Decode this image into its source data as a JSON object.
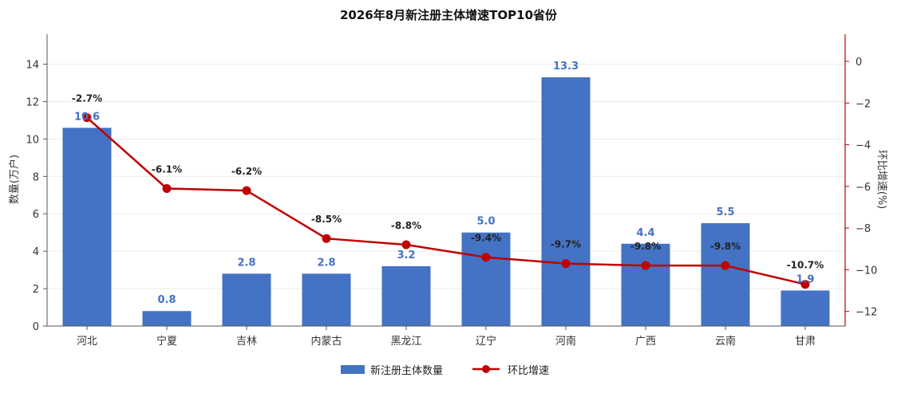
{
  "chart_data": {
    "type": "bar",
    "title": "2026年8月新注册主体增速TOP10省份",
    "categories": [
      "河北",
      "宁夏",
      "吉林",
      "内蒙古",
      "黑龙江",
      "辽宁",
      "河南",
      "广西",
      "云南",
      "甘肃"
    ],
    "series": [
      {
        "name": "新注册主体数量",
        "type": "bar",
        "axis": "left",
        "values": [
          10.6,
          0.8,
          2.8,
          2.8,
          3.2,
          5.0,
          13.3,
          4.4,
          5.5,
          1.9
        ],
        "labels": [
          "10.6",
          "0.8",
          "2.8",
          "2.8",
          "3.2",
          "5.0",
          "13.3",
          "4.4",
          "5.5",
          "1.9"
        ]
      },
      {
        "name": "环比增速",
        "type": "line",
        "axis": "right",
        "values": [
          -2.7,
          -6.1,
          -6.2,
          -8.5,
          -8.8,
          -9.4,
          -9.7,
          -9.8,
          -9.8,
          -10.7
        ],
        "labels": [
          "-2.7%",
          "-6.1%",
          "-6.2%",
          "-8.5%",
          "-8.8%",
          "-9.4%",
          "-9.7%",
          "-9.8%",
          "-9.8%",
          "-10.7%"
        ]
      }
    ],
    "ylabel_left": "数量(万户)",
    "ylabel_right": "环比增速(%)",
    "ylim_left": [
      0,
      15.6
    ],
    "ylim_right": [
      -12.7,
      1.3
    ],
    "yticks_left": [
      "0",
      "2",
      "4",
      "6",
      "8",
      "10",
      "12",
      "14"
    ],
    "yticks_right": [
      "0",
      "−2",
      "−4",
      "−6",
      "−8",
      "−10",
      "−12"
    ],
    "grid": true,
    "legend_position": "bottom-center",
    "colors": {
      "bar": "#4472C4",
      "line": "#C00000",
      "bar_label": "#4472C4",
      "right_axis": "#C00000"
    }
  }
}
